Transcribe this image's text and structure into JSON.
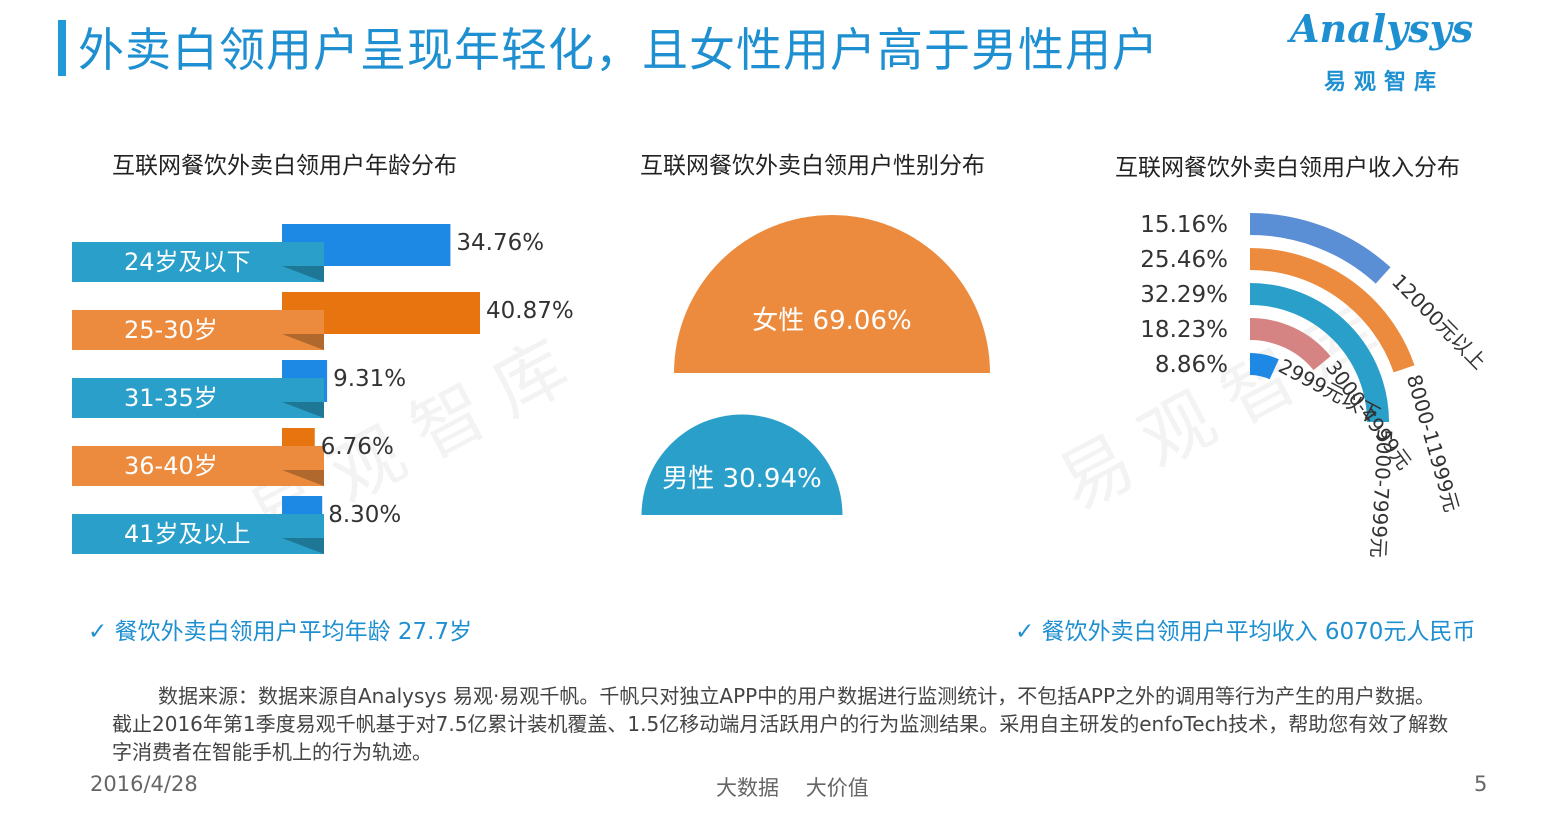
{
  "header": {
    "title": "外卖白领用户呈现年轻化，且女性用户高于男性用户",
    "logo_en": "Analysys",
    "logo_cn": "易观智库"
  },
  "watermark": "易观智库",
  "colors": {
    "blue": "#2a9fc9",
    "orange": "#ec8b3d",
    "dark_blue": "#1e88e5",
    "dark_orange": "#e8740f",
    "pink": "#d68383",
    "mid_blue": "#5a8fd6"
  },
  "notes": {
    "left": "✓ 餐饮外卖白领用户平均年龄 27.7岁",
    "right": "✓ 餐饮外卖白领用户平均收入 6070元人民币"
  },
  "source": "数据来源：数据来源自Analysys 易观·易观千帆。千帆只对独立APP中的用户数据进行监测统计，不包括APP之外的调用等行为产生的用户数据。截止2016年第1季度易观千帆基于对7.5亿累计装机覆盖、1.5亿移动端月活跃用户的行为监测结果。采用自主研发的enfoTech技术，帮助您有效了解数字消费者在智能手机上的行为轨迹。",
  "footer": {
    "date": "2016/4/28",
    "slogan": "大数据    大价值",
    "page": "5"
  },
  "chart_data": [
    {
      "type": "bar",
      "title": "互联网餐饮外卖白领用户年龄分布",
      "categories": [
        "24岁及以下",
        "25-30岁",
        "31-35岁",
        "36-40岁",
        "41岁及以上"
      ],
      "values": [
        34.76,
        40.87,
        9.31,
        6.76,
        8.3
      ],
      "value_labels": [
        "34.76%",
        "40.87%",
        "9.31%",
        "6.76%",
        "8.30%"
      ],
      "colors": [
        "blue",
        "orange",
        "blue",
        "orange",
        "blue"
      ]
    },
    {
      "type": "pie",
      "title": "互联网餐饮外卖白领用户性别分布",
      "categories": [
        "女性",
        "男性"
      ],
      "values": [
        69.06,
        30.94
      ],
      "value_labels": [
        "69.06%",
        "30.94%"
      ],
      "colors": [
        "orange",
        "blue"
      ]
    },
    {
      "type": "bar",
      "title": "互联网餐饮外卖白领用户收入分布",
      "categories": [
        "12000元以上",
        "8000-11999元",
        "5000-7999元",
        "3000-4999元",
        "2999元以下"
      ],
      "values": [
        15.16,
        25.46,
        32.29,
        18.23,
        8.86
      ],
      "value_labels": [
        "15.16%",
        "25.46%",
        "32.29%",
        "18.23%",
        "8.86%"
      ],
      "colors": [
        "mid_blue",
        "orange",
        "blue",
        "pink",
        "dark_blue"
      ]
    }
  ]
}
